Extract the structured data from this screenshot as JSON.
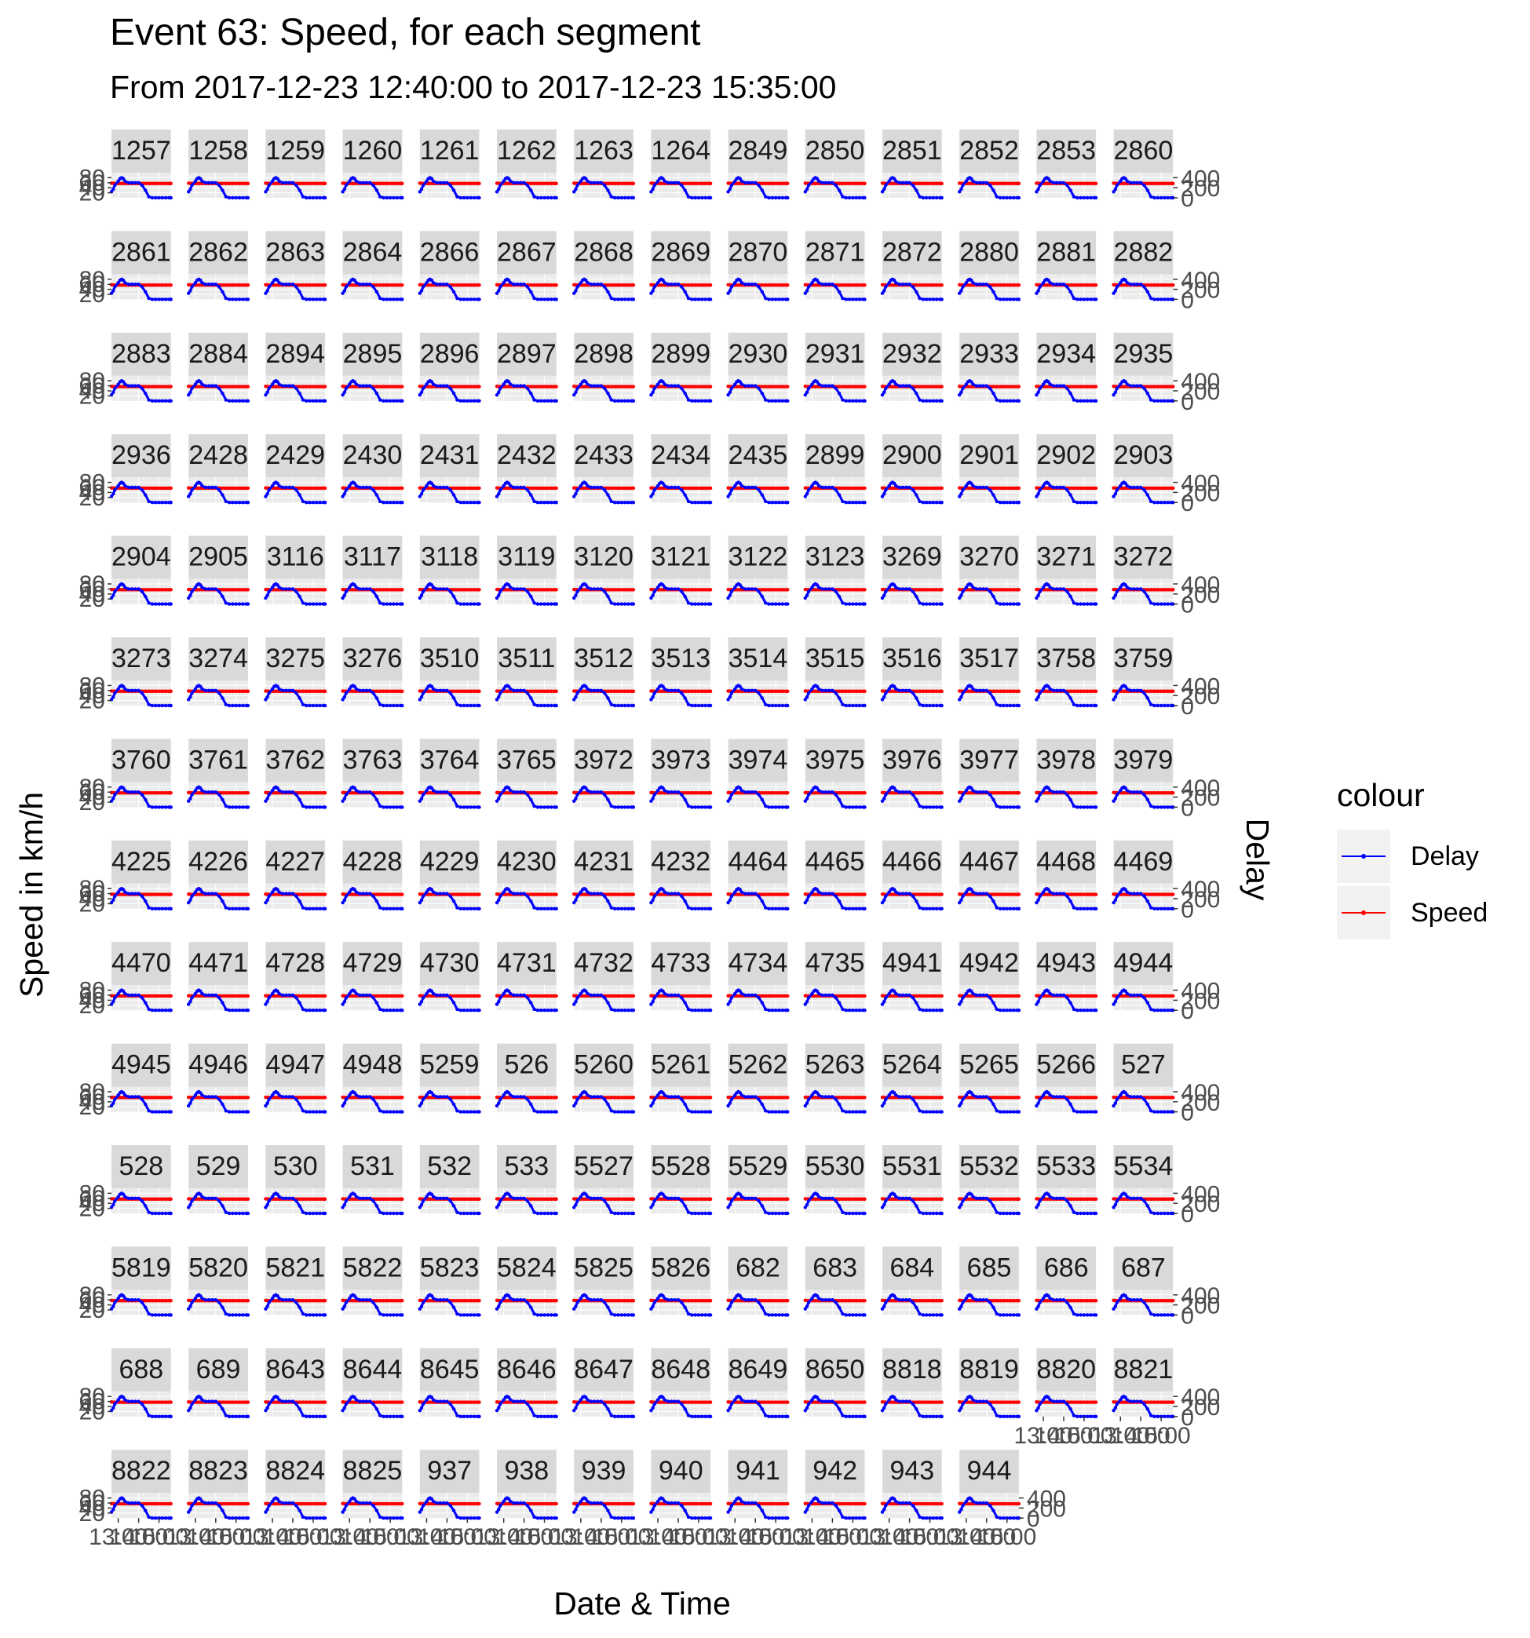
{
  "chart_data": {
    "type": "line",
    "title": "Event 63: Speed, for each segment",
    "subtitle": "From 2017-12-23 12:40:00 to 2017-12-23 15:35:00",
    "xlabel": "Date & Time",
    "ylabel": "Speed in km/h",
    "ylabel_secondary": "Delay",
    "y_ticks": [
      "20",
      "40",
      "60",
      "80"
    ],
    "y2_ticks": [
      "0",
      "200",
      "400"
    ],
    "x_ticks": [
      "13:00",
      "14:00",
      "15:00"
    ],
    "facets": [
      "1257",
      "1258",
      "1259",
      "1260",
      "1261",
      "1262",
      "1263",
      "1264",
      "2849",
      "2850",
      "2851",
      "2852",
      "2853",
      "2860",
      "2861",
      "2862",
      "2863",
      "2864",
      "2866",
      "2867",
      "2868",
      "2869",
      "2870",
      "2871",
      "2872",
      "2880",
      "2881",
      "2882",
      "2883",
      "2884",
      "2894",
      "2895",
      "2896",
      "2897",
      "2898",
      "2899",
      "2930",
      "2931",
      "2932",
      "2933",
      "2934",
      "2935",
      "2936",
      "2428",
      "2429",
      "2430",
      "2431",
      "2432",
      "2433",
      "2434",
      "2435",
      "2899",
      "2900",
      "2901",
      "2902",
      "2903",
      "2904",
      "2905",
      "3116",
      "3117",
      "3118",
      "3119",
      "3120",
      "3121",
      "3122",
      "3123",
      "3269",
      "3270",
      "3271",
      "3272",
      "3273",
      "3274",
      "3275",
      "3276",
      "3510",
      "3511",
      "3512",
      "3513",
      "3514",
      "3515",
      "3516",
      "3517",
      "3758",
      "3759",
      "3760",
      "3761",
      "3762",
      "3763",
      "3764",
      "3765",
      "3972",
      "3973",
      "3974",
      "3975",
      "3976",
      "3977",
      "3978",
      "3979",
      "4225",
      "4226",
      "4227",
      "4228",
      "4229",
      "4230",
      "4231",
      "4232",
      "4464",
      "4465",
      "4466",
      "4467",
      "4468",
      "4469",
      "4470",
      "4471",
      "4728",
      "4729",
      "4730",
      "4731",
      "4732",
      "4733",
      "4734",
      "4735",
      "4941",
      "4942",
      "4943",
      "4944",
      "4945",
      "4946",
      "4947",
      "4948",
      "5259",
      "526",
      "5260",
      "5261",
      "5262",
      "5263",
      "5264",
      "5265",
      "5266",
      "527",
      "528",
      "529",
      "530",
      "531",
      "532",
      "533",
      "5527",
      "5528",
      "5529",
      "5530",
      "5531",
      "5532",
      "5533",
      "5534",
      "5819",
      "5820",
      "5821",
      "5822",
      "5823",
      "5824",
      "5825",
      "5826",
      "682",
      "683",
      "684",
      "685",
      "686",
      "687",
      "688",
      "689",
      "8643",
      "8644",
      "8645",
      "8646",
      "8647",
      "8648",
      "8649",
      "8650",
      "8818",
      "8819",
      "8820",
      "8821",
      "8822",
      "8823",
      "8824",
      "8825",
      "937",
      "938",
      "939",
      "940",
      "941",
      "942",
      "943",
      "944"
    ],
    "series": [
      {
        "name": "Speed",
        "color": "#ff0000",
        "x": [
          "12:40",
          "12:50",
          "13:00",
          "13:10",
          "13:20",
          "13:30",
          "13:40",
          "13:50",
          "14:00",
          "14:10",
          "14:20",
          "14:30",
          "14:40",
          "14:50",
          "15:00",
          "15:10",
          "15:20",
          "15:30",
          "15:35"
        ],
        "values": [
          58,
          57,
          57,
          57,
          57,
          57,
          57,
          57,
          57,
          57,
          57,
          57,
          57,
          57,
          57,
          57,
          57,
          57,
          57
        ]
      },
      {
        "name": "Delay",
        "color": "#0000ff",
        "x": [
          "12:40",
          "12:45",
          "12:50",
          "13:00",
          "13:05",
          "13:10",
          "13:15",
          "13:20",
          "13:30",
          "13:40",
          "13:50",
          "14:00",
          "14:10",
          "14:20",
          "14:30",
          "14:40",
          "14:50",
          "15:00",
          "15:10",
          "15:20",
          "15:30",
          "15:35"
        ],
        "values": [
          120,
          170,
          250,
          330,
          380,
          400,
          380,
          330,
          300,
          300,
          300,
          300,
          250,
          150,
          20,
          0,
          0,
          0,
          0,
          0,
          0,
          0
        ]
      }
    ],
    "ylim": [
      0,
      100
    ],
    "y2lim": [
      0,
      500
    ],
    "grid": true,
    "legend_position": "right"
  },
  "legend": {
    "title": "colour",
    "items": [
      {
        "label": "Delay",
        "color": "#0000ff"
      },
      {
        "label": "Speed",
        "color": "#ff0000"
      }
    ]
  }
}
